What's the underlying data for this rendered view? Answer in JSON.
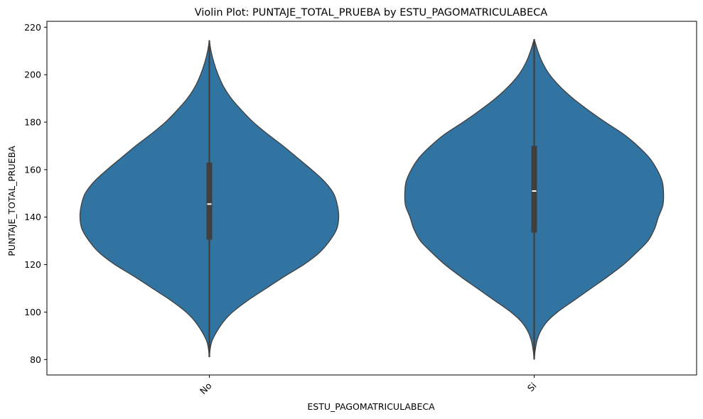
{
  "chart_data": {
    "type": "violin",
    "title": "Violin Plot: PUNTAJE_TOTAL_PRUEBA by ESTU_PAGOMATRICULABECA",
    "xlabel": "ESTU_PAGOMATRICULABECA",
    "ylabel": "PUNTAJE_TOTAL_PRUEBA",
    "ylim": [
      73.5,
      222.5
    ],
    "yticks": [
      80,
      100,
      120,
      140,
      160,
      180,
      200,
      220
    ],
    "categories": [
      "No",
      "Si"
    ],
    "fill_color": "#3274a1",
    "line_color": "#3f3f3f",
    "violins": [
      {
        "category": "No",
        "min": 81,
        "max": 214.5,
        "q1": 130.5,
        "median": 145.5,
        "q3": 163,
        "whisker_low": 81,
        "whisker_high": 214.5,
        "density": [
          [
            81,
            0.0
          ],
          [
            85,
            0.008
          ],
          [
            88,
            0.022
          ],
          [
            92,
            0.06
          ],
          [
            96,
            0.11
          ],
          [
            100,
            0.18
          ],
          [
            105,
            0.3
          ],
          [
            110,
            0.44
          ],
          [
            115,
            0.58
          ],
          [
            120,
            0.73
          ],
          [
            125,
            0.85
          ],
          [
            130,
            0.93
          ],
          [
            135,
            0.985
          ],
          [
            140,
            1.0
          ],
          [
            145,
            0.99
          ],
          [
            150,
            0.96
          ],
          [
            155,
            0.89
          ],
          [
            160,
            0.79
          ],
          [
            165,
            0.68
          ],
          [
            170,
            0.57
          ],
          [
            175,
            0.45
          ],
          [
            180,
            0.34
          ],
          [
            185,
            0.25
          ],
          [
            190,
            0.17
          ],
          [
            195,
            0.11
          ],
          [
            200,
            0.068
          ],
          [
            205,
            0.036
          ],
          [
            210,
            0.013
          ],
          [
            214.5,
            0.0
          ]
        ]
      },
      {
        "category": "Si",
        "min": 80,
        "max": 215,
        "q1": 133.5,
        "median": 151,
        "q3": 170,
        "whisker_low": 80,
        "whisker_high": 215,
        "density": [
          [
            80,
            0.0
          ],
          [
            84,
            0.008
          ],
          [
            88,
            0.022
          ],
          [
            92,
            0.05
          ],
          [
            96,
            0.1
          ],
          [
            100,
            0.18
          ],
          [
            105,
            0.31
          ],
          [
            110,
            0.44
          ],
          [
            115,
            0.57
          ],
          [
            120,
            0.69
          ],
          [
            125,
            0.79
          ],
          [
            130,
            0.88
          ],
          [
            135,
            0.93
          ],
          [
            140,
            0.96
          ],
          [
            145,
            0.995
          ],
          [
            150,
            1.0
          ],
          [
            155,
            0.99
          ],
          [
            160,
            0.95
          ],
          [
            165,
            0.89
          ],
          [
            170,
            0.8
          ],
          [
            175,
            0.69
          ],
          [
            180,
            0.55
          ],
          [
            185,
            0.42
          ],
          [
            190,
            0.3
          ],
          [
            195,
            0.2
          ],
          [
            200,
            0.12
          ],
          [
            205,
            0.065
          ],
          [
            210,
            0.028
          ],
          [
            215,
            0.0
          ]
        ]
      }
    ]
  }
}
